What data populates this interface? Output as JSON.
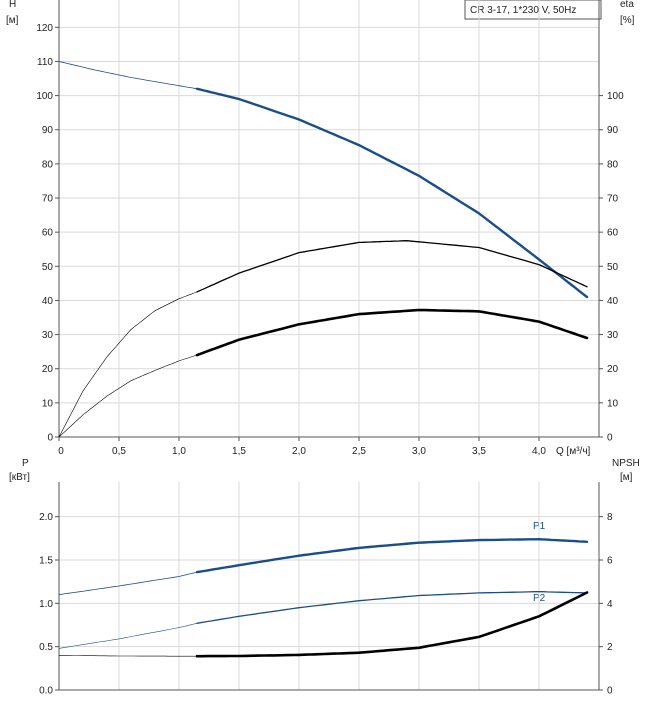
{
  "colors": {
    "blue": "#1a4e8a",
    "black": "#000000",
    "grid": "#d9d9d9",
    "axis": "#555555"
  },
  "chart_data": [
    {
      "type": "line",
      "panel": "top",
      "legend_box": "CR 3-17, 1*230 V, 50Hz",
      "ylabel": "H",
      "ylabel_unit": "[м]",
      "y2label": "eta",
      "y2label_unit": "[%]",
      "xlabel": "Q [м³/ч]",
      "xlim": [
        0,
        4.5
      ],
      "ylim": [
        0,
        128
      ],
      "y2lim": [
        0,
        128
      ],
      "grid": true,
      "xticks": [
        "0",
        "0,5",
        "1,0",
        "1,5",
        "2,0",
        "2,5",
        "3,0",
        "3,5",
        "4,0"
      ],
      "xtick_values": [
        0,
        0.5,
        1.0,
        1.5,
        2.0,
        2.5,
        3.0,
        3.5,
        4.0
      ],
      "yticks": [
        "0",
        "10",
        "20",
        "30",
        "40",
        "50",
        "60",
        "70",
        "80",
        "90",
        "100",
        "110",
        "120"
      ],
      "ytick_values": [
        0,
        10,
        20,
        30,
        40,
        50,
        60,
        70,
        80,
        90,
        100,
        110,
        120
      ],
      "y2ticks": [
        "0",
        "10",
        "20",
        "30",
        "40",
        "50",
        "60",
        "70",
        "80",
        "90",
        "100"
      ],
      "y2tick_values": [
        0,
        10,
        20,
        30,
        40,
        50,
        60,
        70,
        80,
        90,
        100
      ],
      "series": [
        {
          "id": "H",
          "color": "#1a4e8a",
          "axis": "left",
          "x": [
            0,
            0.3,
            0.6,
            0.9,
            1.15,
            1.5,
            2.0,
            2.5,
            3.0,
            3.5,
            4.0,
            4.4
          ],
          "y": [
            110,
            107.5,
            105.3,
            103.5,
            102,
            99,
            93,
            85.5,
            76.5,
            65.5,
            52,
            41
          ],
          "op_start": 1.15,
          "width_op": 2.4,
          "width_ext": 0.8
        },
        {
          "id": "eta_pump",
          "color": "#000000",
          "axis": "right",
          "x": [
            0,
            0.2,
            0.4,
            0.6,
            0.8,
            1.0,
            1.15,
            1.5,
            2.0,
            2.5,
            2.9,
            3.5,
            4.0,
            4.4
          ],
          "y": [
            0,
            13.5,
            23.5,
            31.5,
            37,
            40.5,
            42.5,
            48,
            54,
            57,
            57.5,
            55.5,
            50.5,
            44
          ],
          "op_start": 1.15,
          "width_op": 1.3,
          "width_ext": 0.6
        },
        {
          "id": "eta_total",
          "color": "#000000",
          "axis": "right",
          "x": [
            0,
            0.2,
            0.4,
            0.6,
            0.8,
            1.0,
            1.15,
            1.5,
            2.0,
            2.5,
            3.0,
            3.5,
            4.0,
            4.4
          ],
          "y": [
            0,
            6.5,
            12,
            16.5,
            19.5,
            22.3,
            24,
            28.5,
            33,
            36,
            37.2,
            36.8,
            33.8,
            29
          ],
          "op_start": 1.15,
          "width_op": 2.6,
          "width_ext": 0.6
        }
      ]
    },
    {
      "type": "line",
      "panel": "bottom",
      "ylabel": "P",
      "ylabel_unit": "[кВт]",
      "y2label": "NPSH",
      "y2label_unit": "[м]",
      "xlim": [
        0,
        4.5
      ],
      "ylim": [
        0,
        2.4
      ],
      "y2lim": [
        0,
        9.6
      ],
      "grid": true,
      "yticks": [
        "0.0",
        "0.5",
        "1.0",
        "1.5",
        "2.0"
      ],
      "ytick_values": [
        0,
        0.5,
        1.0,
        1.5,
        2.0
      ],
      "y2ticks": [
        "0",
        "2",
        "4",
        "6",
        "8"
      ],
      "y2tick_values": [
        0,
        2,
        4,
        6,
        8
      ],
      "series": [
        {
          "id": "P1",
          "name": "P1",
          "color": "#1a4e8a",
          "axis": "left",
          "x": [
            0,
            0.5,
            1.0,
            1.15,
            1.5,
            2.0,
            2.5,
            3.0,
            3.5,
            4.0,
            4.4
          ],
          "y": [
            1.1,
            1.2,
            1.31,
            1.36,
            1.44,
            1.55,
            1.64,
            1.7,
            1.73,
            1.74,
            1.71
          ],
          "op_start": 1.15,
          "width_op": 2.4,
          "width_ext": 0.8
        },
        {
          "id": "P2",
          "name": "P2",
          "color": "#1a4e8a",
          "axis": "left",
          "x": [
            0,
            0.5,
            1.0,
            1.15,
            1.5,
            2.0,
            2.5,
            3.0,
            3.5,
            4.0,
            4.4
          ],
          "y": [
            0.48,
            0.59,
            0.72,
            0.77,
            0.85,
            0.95,
            1.03,
            1.09,
            1.12,
            1.135,
            1.12
          ],
          "op_start": 1.15,
          "width_op": 1.3,
          "width_ext": 0.6
        },
        {
          "id": "NPSH",
          "color": "#000000",
          "axis": "right",
          "x": [
            0,
            0.5,
            1.0,
            1.15,
            1.5,
            2.0,
            2.5,
            3.0,
            3.5,
            4.0,
            4.4
          ],
          "y": [
            1.6,
            1.57,
            1.56,
            1.56,
            1.57,
            1.62,
            1.72,
            1.95,
            2.45,
            3.4,
            4.5
          ],
          "op_start": 1.15,
          "width_op": 2.6,
          "width_ext": 0.6
        }
      ]
    }
  ]
}
